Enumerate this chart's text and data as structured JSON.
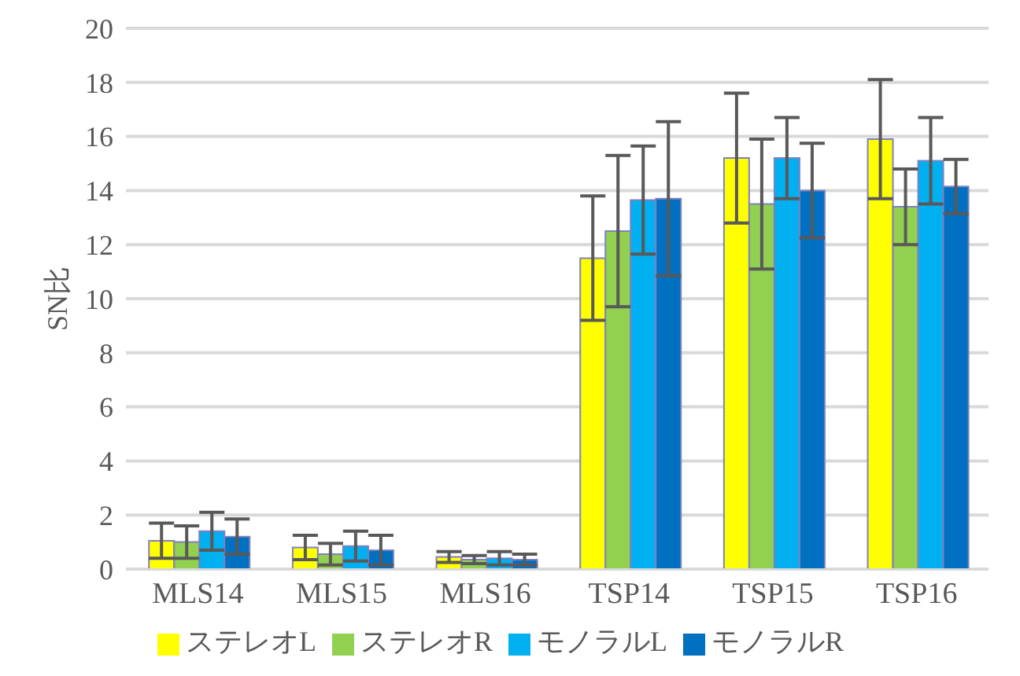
{
  "chart_data": {
    "type": "bar",
    "ylabel": "SN比",
    "categories": [
      "MLS14",
      "MLS15",
      "MLS16",
      "TSP14",
      "TSP15",
      "TSP16"
    ],
    "series": [
      {
        "name": "ステレオL",
        "color": "#ffff00",
        "values": [
          1.05,
          0.8,
          0.45,
          11.5,
          15.2,
          15.9
        ],
        "errors": [
          0.65,
          0.45,
          0.2,
          2.3,
          2.4,
          2.2
        ]
      },
      {
        "name": "ステレオR",
        "color": "#92d050",
        "values": [
          1.0,
          0.55,
          0.35,
          12.5,
          13.5,
          13.4
        ],
        "errors": [
          0.6,
          0.4,
          0.15,
          2.8,
          2.4,
          1.4
        ]
      },
      {
        "name": "モノラルL",
        "color": "#00b0f0",
        "values": [
          1.4,
          0.85,
          0.4,
          13.65,
          15.2,
          15.1
        ],
        "errors": [
          0.7,
          0.55,
          0.25,
          2.0,
          1.5,
          1.6
        ]
      },
      {
        "name": "モノラルR",
        "color": "#0070c0",
        "values": [
          1.2,
          0.7,
          0.35,
          13.7,
          14.0,
          14.15
        ],
        "errors": [
          0.65,
          0.55,
          0.2,
          2.85,
          1.75,
          1.0
        ]
      }
    ],
    "ylim": [
      0,
      20
    ],
    "yticks": [
      0,
      2,
      4,
      6,
      8,
      10,
      12,
      14,
      16,
      18,
      20
    ],
    "grid": "y",
    "legend": "bottom"
  }
}
